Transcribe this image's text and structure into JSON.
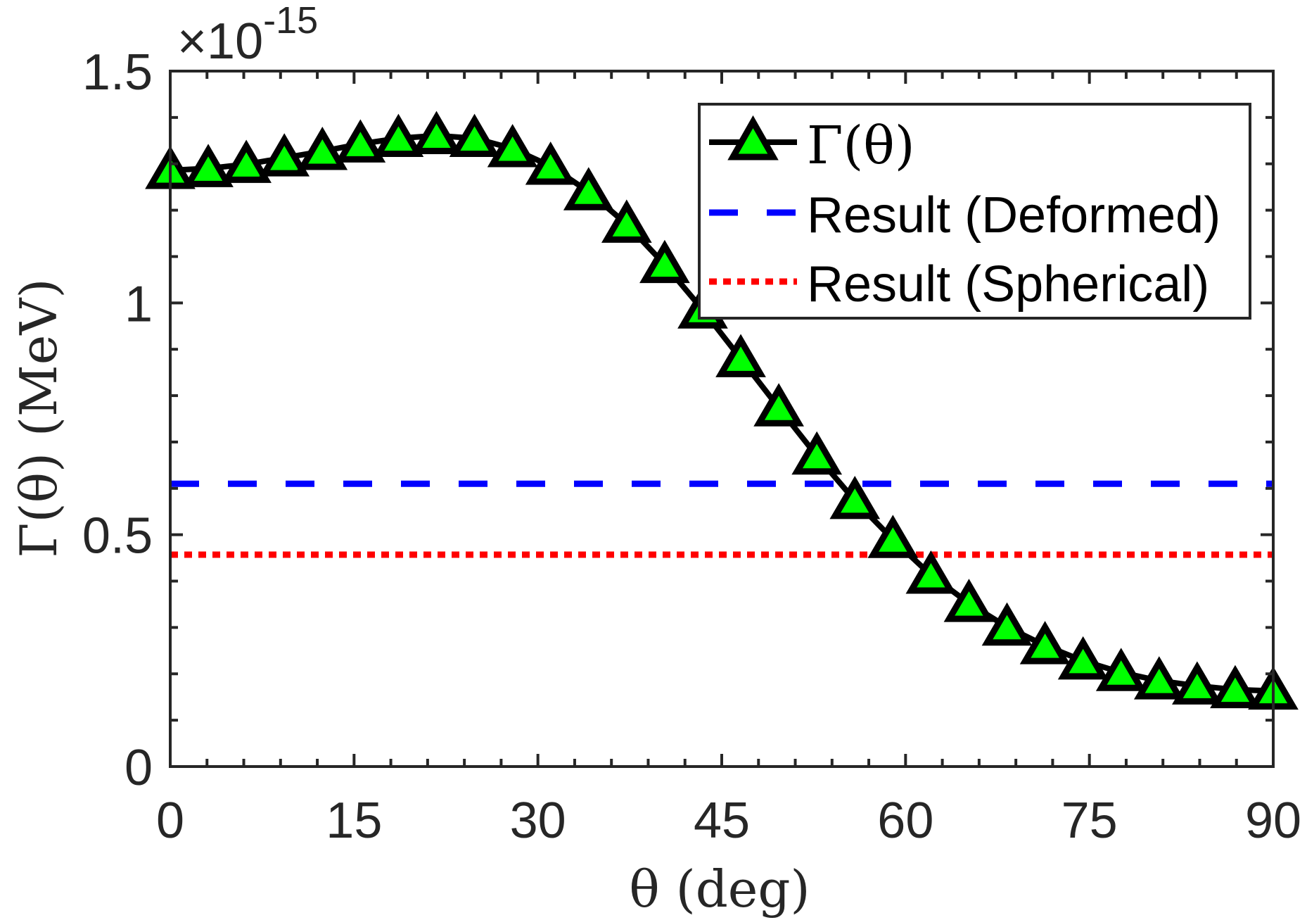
{
  "chart_data": {
    "type": "line",
    "title": "",
    "xlabel": "θ (deg)",
    "ylabel": "Γ(θ) (MeV)",
    "y_exponent_base": "×10",
    "y_exponent_power": "-15",
    "y_multiplier": 1e-15,
    "xlim": [
      0,
      90
    ],
    "ylim": [
      0,
      1.5
    ],
    "x_ticks": [
      0,
      15,
      30,
      45,
      60,
      75,
      90
    ],
    "x_tick_labels": [
      "0",
      "15",
      "30",
      "45",
      "60",
      "75",
      "90"
    ],
    "x_minor_step": 3,
    "y_ticks": [
      0,
      0.5,
      1,
      1.5
    ],
    "y_tick_labels": [
      "0",
      "0.5",
      "1",
      "1.5"
    ],
    "y_minor_step": 0.1,
    "grid": false,
    "legend_position": "top-right",
    "series": [
      {
        "name": "Γ(θ)",
        "style": "solid-line-triangle-markers",
        "line_color": "#000000",
        "marker_fill": "#00ff00",
        "marker_edge": "#000000",
        "x": [
          0,
          3.103,
          6.207,
          9.31,
          12.414,
          15.517,
          18.621,
          21.724,
          24.828,
          27.931,
          31.034,
          34.138,
          37.241,
          40.345,
          43.448,
          46.552,
          49.655,
          52.759,
          55.862,
          58.966,
          62.069,
          65.172,
          68.276,
          71.379,
          74.483,
          77.586,
          80.69,
          83.793,
          86.897,
          90
        ],
        "values": [
          1.286,
          1.29,
          1.299,
          1.313,
          1.327,
          1.343,
          1.355,
          1.361,
          1.355,
          1.333,
          1.295,
          1.24,
          1.17,
          1.083,
          0.985,
          0.88,
          0.774,
          0.67,
          0.574,
          0.49,
          0.413,
          0.352,
          0.301,
          0.261,
          0.228,
          0.203,
          0.185,
          0.174,
          0.166,
          0.163
        ]
      },
      {
        "name": "Result (Deformed)",
        "style": "dashed",
        "line_color": "#0000ff",
        "x": [
          0,
          90
        ],
        "values": [
          0.61,
          0.61
        ]
      },
      {
        "name": "Result (Spherical)",
        "style": "dotted",
        "line_color": "#ff0000",
        "x": [
          0,
          90
        ],
        "values": [
          0.457,
          0.457
        ]
      }
    ]
  }
}
